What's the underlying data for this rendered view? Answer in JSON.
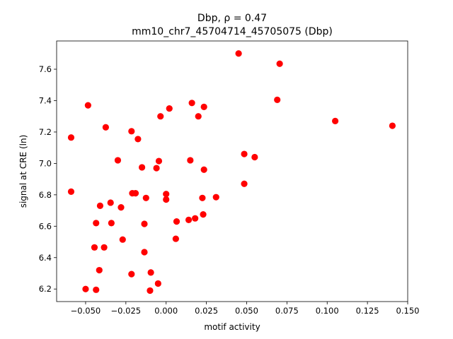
{
  "chart_data": {
    "type": "scatter",
    "title_line1": "Dbp, ρ = 0.47",
    "title_line2": "mm10_chr7_45704714_45705075 (Dbp)",
    "xlabel": "motif activity",
    "ylabel": "signal at CRE (ln)",
    "xlim": [
      -0.068,
      0.15
    ],
    "ylim": [
      6.12,
      7.78
    ],
    "xticks": [
      -0.05,
      -0.025,
      0.0,
      0.025,
      0.05,
      0.075,
      0.1,
      0.125,
      0.15
    ],
    "xtick_labels": [
      "−0.050",
      "−0.025",
      "0.000",
      "0.025",
      "0.050",
      "0.075",
      "0.100",
      "0.125",
      "0.150"
    ],
    "yticks": [
      6.2,
      6.4,
      6.6,
      6.8,
      7.0,
      7.2,
      7.4,
      7.6
    ],
    "ytick_labels": [
      "6.2",
      "6.4",
      "6.6",
      "6.8",
      "7.0",
      "7.2",
      "7.4",
      "7.6"
    ],
    "grid": false,
    "marker_color": "#ff0000",
    "points": [
      {
        "x": 0.045,
        "y": 7.7
      },
      {
        "x": 0.0705,
        "y": 7.635
      },
      {
        "x": 0.069,
        "y": 7.405
      },
      {
        "x": 0.105,
        "y": 7.27
      },
      {
        "x": 0.1405,
        "y": 7.24
      },
      {
        "x": -0.0485,
        "y": 7.37
      },
      {
        "x": 0.016,
        "y": 7.385
      },
      {
        "x": 0.0235,
        "y": 7.36
      },
      {
        "x": 0.002,
        "y": 7.35
      },
      {
        "x": -0.0035,
        "y": 7.3
      },
      {
        "x": 0.02,
        "y": 7.3
      },
      {
        "x": -0.0375,
        "y": 7.23
      },
      {
        "x": -0.0215,
        "y": 7.205
      },
      {
        "x": -0.059,
        "y": 7.165
      },
      {
        "x": -0.0175,
        "y": 7.155
      },
      {
        "x": 0.0485,
        "y": 7.06
      },
      {
        "x": 0.055,
        "y": 7.04
      },
      {
        "x": -0.03,
        "y": 7.02
      },
      {
        "x": -0.0045,
        "y": 7.015
      },
      {
        "x": 0.015,
        "y": 7.02
      },
      {
        "x": -0.015,
        "y": 6.975
      },
      {
        "x": -0.006,
        "y": 6.97
      },
      {
        "x": 0.0235,
        "y": 6.96
      },
      {
        "x": 0.0485,
        "y": 6.87
      },
      {
        "x": -0.059,
        "y": 6.82
      },
      {
        "x": -0.021,
        "y": 6.81
      },
      {
        "x": -0.019,
        "y": 6.81
      },
      {
        "x": 0.0,
        "y": 6.805
      },
      {
        "x": 0.031,
        "y": 6.785
      },
      {
        "x": -0.0125,
        "y": 6.78
      },
      {
        "x": 0.0225,
        "y": 6.78
      },
      {
        "x": 0.0,
        "y": 6.77
      },
      {
        "x": -0.0345,
        "y": 6.75
      },
      {
        "x": -0.041,
        "y": 6.73
      },
      {
        "x": -0.028,
        "y": 6.72
      },
      {
        "x": 0.023,
        "y": 6.675
      },
      {
        "x": 0.018,
        "y": 6.65
      },
      {
        "x": 0.014,
        "y": 6.64
      },
      {
        "x": 0.0065,
        "y": 6.63
      },
      {
        "x": -0.0435,
        "y": 6.62
      },
      {
        "x": -0.034,
        "y": 6.62
      },
      {
        "x": -0.0135,
        "y": 6.615
      },
      {
        "x": -0.027,
        "y": 6.515
      },
      {
        "x": 0.006,
        "y": 6.52
      },
      {
        "x": -0.0445,
        "y": 6.465
      },
      {
        "x": -0.0385,
        "y": 6.465
      },
      {
        "x": -0.0135,
        "y": 6.435
      },
      {
        "x": -0.0415,
        "y": 6.32
      },
      {
        "x": -0.0095,
        "y": 6.305
      },
      {
        "x": -0.0215,
        "y": 6.295
      },
      {
        "x": -0.005,
        "y": 6.235
      },
      {
        "x": -0.05,
        "y": 6.2
      },
      {
        "x": -0.0435,
        "y": 6.195
      },
      {
        "x": -0.01,
        "y": 6.19
      }
    ]
  }
}
